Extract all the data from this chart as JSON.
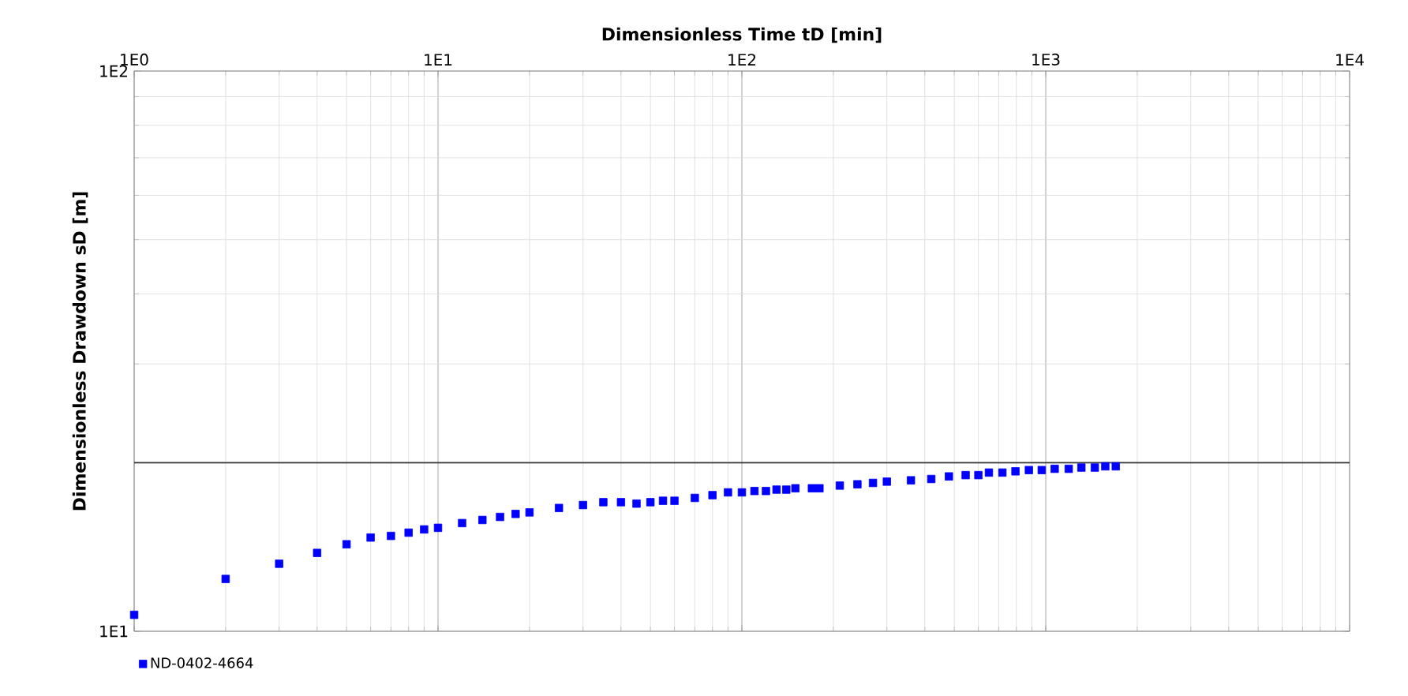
{
  "chart_data": {
    "type": "scatter",
    "xlabel": "Dimensionless Time tD [min]",
    "ylabel": "Dimensionless Drawdown sD [m]",
    "log": "xy",
    "xlim": [
      1,
      10000
    ],
    "ylim": [
      10,
      100
    ],
    "xticks": [
      {
        "value": 1,
        "label": "1E0"
      },
      {
        "value": 10,
        "label": "1E1"
      },
      {
        "value": 100,
        "label": "1E2"
      },
      {
        "value": 1000,
        "label": "1E3"
      },
      {
        "value": 10000,
        "label": "1E4"
      }
    ],
    "yticks": [
      {
        "value": 10,
        "label": "1E1"
      },
      {
        "value": 100,
        "label": "1E2"
      }
    ],
    "grid": true,
    "legend": "bottom left",
    "marker": "square",
    "ref_lines": [
      {
        "axis": "y",
        "value": 20,
        "color": "#333333"
      }
    ],
    "series": [
      {
        "name": "ND-0402-4664",
        "color": "#0000ff",
        "x": [
          1,
          2,
          3,
          4,
          5,
          6,
          7,
          8,
          9,
          10,
          12,
          14,
          16,
          18,
          20,
          25,
          30,
          35,
          40,
          45,
          50,
          55,
          60,
          70,
          80,
          90,
          100,
          110,
          120,
          130,
          140,
          150,
          170,
          180,
          210,
          240,
          270,
          300,
          360,
          420,
          480,
          545,
          600,
          650,
          720,
          795,
          880,
          970,
          1070,
          1190,
          1310,
          1450,
          1570,
          1700
        ],
        "values": [
          10.7,
          12.4,
          13.2,
          13.8,
          14.3,
          14.7,
          14.8,
          15.0,
          15.2,
          15.3,
          15.6,
          15.8,
          16.0,
          16.2,
          16.3,
          16.6,
          16.8,
          17.0,
          17.0,
          16.9,
          17.0,
          17.1,
          17.1,
          17.3,
          17.5,
          17.7,
          17.7,
          17.8,
          17.8,
          17.9,
          17.9,
          18.0,
          18.0,
          18.0,
          18.2,
          18.3,
          18.4,
          18.5,
          18.6,
          18.7,
          18.9,
          19.0,
          19.0,
          19.2,
          19.2,
          19.3,
          19.4,
          19.4,
          19.5,
          19.5,
          19.6,
          19.6,
          19.7,
          19.7
        ]
      }
    ]
  }
}
